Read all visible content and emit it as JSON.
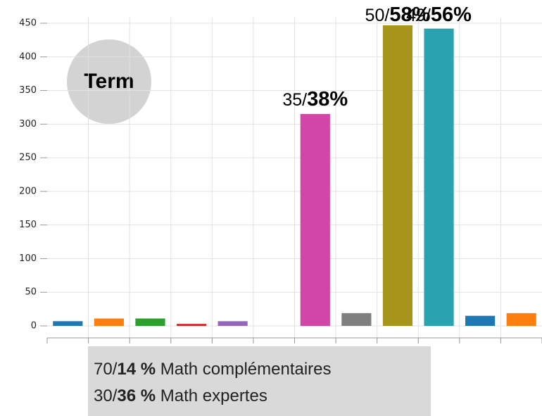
{
  "chart_data": {
    "type": "bar",
    "categories": [
      null,
      null,
      null,
      null,
      null,
      null,
      null,
      null,
      null,
      null,
      null,
      null
    ],
    "values": [
      7,
      11,
      11,
      3,
      7,
      0,
      315,
      19,
      447,
      442,
      15,
      19
    ],
    "colors": [
      "#1f77b4",
      "#ff7f0e",
      "#2ca02c",
      "#d62728",
      "#9467bd",
      "#8c564b",
      "#d246a8",
      "#7f7f7f",
      "#a8961c",
      "#2aa2b0",
      "#1f77b4",
      "#ff7f0e"
    ],
    "ylim": [
      0,
      450
    ],
    "yticks": [
      0,
      50,
      100,
      150,
      200,
      250,
      300,
      350,
      400,
      450
    ],
    "grid": true,
    "badge": "Term",
    "annotations": [
      {
        "category": 6,
        "prefix": "35/",
        "bold": "38%"
      },
      {
        "category": 8,
        "prefix": "50/",
        "bold": "58%"
      },
      {
        "category": 9,
        "prefix": "49/",
        "bold": "56%"
      }
    ],
    "note_lines": [
      {
        "prefix": "70/",
        "bold": "14 %",
        "suffix": " Math complémentaires"
      },
      {
        "prefix": "30/",
        "bold": "36 %",
        "suffix": " Math expertes"
      }
    ]
  }
}
